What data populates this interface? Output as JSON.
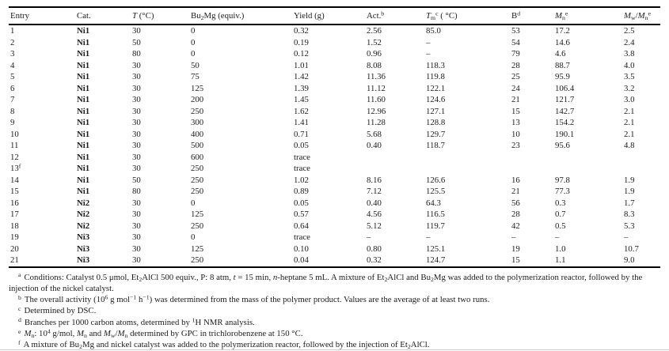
{
  "page": {
    "background_color": "#ffffff",
    "text_color": "#1c1c1c",
    "rule_color": "#000000"
  },
  "table": {
    "columns": [
      {
        "id": "entry",
        "label": "Entry"
      },
      {
        "id": "cat",
        "label": "Cat."
      },
      {
        "id": "temp",
        "label": "*T* (°C)"
      },
      {
        "id": "bu2mg",
        "label": "Bu~2~Mg (equiv.)"
      },
      {
        "id": "yield",
        "label": "Yield (g)"
      },
      {
        "id": "act",
        "label": "Act.^b^"
      },
      {
        "id": "tm",
        "label": "*T*~m~^c^ ( °C)"
      },
      {
        "id": "b",
        "label": "B^d^"
      },
      {
        "id": "mn",
        "label": "*M*~n~^e^"
      },
      {
        "id": "mwmn",
        "label": "*M*~w~/*M*~n~^e^"
      }
    ],
    "rows": [
      {
        "entry": "1",
        "cat": "Ni1",
        "temp": "30",
        "bu2mg": "0",
        "yield": "0.32",
        "act": "2.56",
        "tm": "85.0",
        "b": "53",
        "mn": "17.2",
        "mwmn": "2.5"
      },
      {
        "entry": "2",
        "cat": "Ni1",
        "temp": "50",
        "bu2mg": "0",
        "yield": "0.19",
        "act": "1.52",
        "tm": "–",
        "b": "54",
        "mn": "14.6",
        "mwmn": "2.4"
      },
      {
        "entry": "3",
        "cat": "Ni1",
        "temp": "80",
        "bu2mg": "0",
        "yield": "0.12",
        "act": "0.96",
        "tm": "–",
        "b": "79",
        "mn": "4.6",
        "mwmn": "3.8"
      },
      {
        "entry": "4",
        "cat": "Ni1",
        "temp": "30",
        "bu2mg": "50",
        "yield": "1.01",
        "act": "8.08",
        "tm": "118.3",
        "b": "28",
        "mn": "88.7",
        "mwmn": "4.0"
      },
      {
        "entry": "5",
        "cat": "Ni1",
        "temp": "30",
        "bu2mg": "75",
        "yield": "1.42",
        "act": "11.36",
        "tm": "119.8",
        "b": "25",
        "mn": "95.9",
        "mwmn": "3.5"
      },
      {
        "entry": "6",
        "cat": "Ni1",
        "temp": "30",
        "bu2mg": "125",
        "yield": "1.39",
        "act": "11.12",
        "tm": "122.1",
        "b": "24",
        "mn": "106.4",
        "mwmn": "3.2"
      },
      {
        "entry": "7",
        "cat": "Ni1",
        "temp": "30",
        "bu2mg": "200",
        "yield": "1.45",
        "act": "11.60",
        "tm": "124.6",
        "b": "21",
        "mn": "121.7",
        "mwmn": "3.0"
      },
      {
        "entry": "8",
        "cat": "Ni1",
        "temp": "30",
        "bu2mg": "250",
        "yield": "1.62",
        "act": "12.96",
        "tm": "127.1",
        "b": "15",
        "mn": "142.7",
        "mwmn": "2.1"
      },
      {
        "entry": "9",
        "cat": "Ni1",
        "temp": "30",
        "bu2mg": "300",
        "yield": "1.41",
        "act": "11.28",
        "tm": "128.8",
        "b": "13",
        "mn": "154.2",
        "mwmn": "2.1"
      },
      {
        "entry": "10",
        "cat": "Ni1",
        "temp": "30",
        "bu2mg": "400",
        "yield": "0.71",
        "act": "5.68",
        "tm": "129.7",
        "b": "10",
        "mn": "190.1",
        "mwmn": "2.1"
      },
      {
        "entry": "11",
        "cat": "Ni1",
        "temp": "30",
        "bu2mg": "500",
        "yield": "0.05",
        "act": "0.40",
        "tm": "118.7",
        "b": "23",
        "mn": "95.6",
        "mwmn": "4.8"
      },
      {
        "entry": "12",
        "cat": "Ni1",
        "temp": "30",
        "bu2mg": "600",
        "yield": "trace",
        "act": "",
        "tm": "",
        "b": "",
        "mn": "",
        "mwmn": ""
      },
      {
        "entry": "13^f^",
        "cat": "Ni1",
        "temp": "30",
        "bu2mg": "250",
        "yield": "trace",
        "act": "",
        "tm": "",
        "b": "",
        "mn": "",
        "mwmn": ""
      },
      {
        "entry": "14",
        "cat": "Ni1",
        "temp": "50",
        "bu2mg": "250",
        "yield": "1.02",
        "act": "8.16",
        "tm": "126.6",
        "b": "16",
        "mn": "97.8",
        "mwmn": "1.9"
      },
      {
        "entry": "15",
        "cat": "Ni1",
        "temp": "80",
        "bu2mg": "250",
        "yield": "0.89",
        "act": "7.12",
        "tm": "125.5",
        "b": "21",
        "mn": "77.3",
        "mwmn": "1.9"
      },
      {
        "entry": "16",
        "cat": "Ni2",
        "temp": "30",
        "bu2mg": "0",
        "yield": "0.05",
        "act": "0.40",
        "tm": "64.3",
        "b": "56",
        "mn": "0.3",
        "mwmn": "1.7"
      },
      {
        "entry": "17",
        "cat": "Ni2",
        "temp": "30",
        "bu2mg": "125",
        "yield": "0.57",
        "act": "4.56",
        "tm": "116.5",
        "b": "28",
        "mn": "0.7",
        "mwmn": "8.3"
      },
      {
        "entry": "18",
        "cat": "Ni2",
        "temp": "30",
        "bu2mg": "250",
        "yield": "0.64",
        "act": "5.12",
        "tm": "119.7",
        "b": "42",
        "mn": "0.5",
        "mwmn": "5.3"
      },
      {
        "entry": "19",
        "cat": "Ni3",
        "temp": "30",
        "bu2mg": "0",
        "yield": "trace",
        "act": "–",
        "tm": "–",
        "b": "–",
        "mn": "–",
        "mwmn": "–"
      },
      {
        "entry": "20",
        "cat": "Ni3",
        "temp": "30",
        "bu2mg": "125",
        "yield": "0.10",
        "act": "0.80",
        "tm": "125.1",
        "b": "19",
        "mn": "1.0",
        "mwmn": "10.7"
      },
      {
        "entry": "21",
        "cat": "Ni3",
        "temp": "30",
        "bu2mg": "250",
        "yield": "0.04",
        "act": "0.32",
        "tm": "124.7",
        "b": "15",
        "mn": "1.1",
        "mwmn": "9.0"
      }
    ]
  },
  "footnotes": [
    {
      "marker": "a",
      "text": "Conditions: Catalyst 0.5 μmol, Et~2~AlCl 500 equiv., P: 8 atm, *t* = 15 min, *n*-heptane 5 mL. A mixture of Et~2~AlCl and Bu~2~Mg was added to the polymerization reactor, followed by the injection of the nickel catalyst."
    },
    {
      "marker": "b",
      "text": "The overall activity (10^6^ g mol^−1^ h^−1^) was determined from the mass of the polymer product. Values are the average of at least two runs."
    },
    {
      "marker": "c",
      "text": "Determined by DSC."
    },
    {
      "marker": "d",
      "text": "Branches per 1000 carbon atoms, determined by ^1^H NMR analysis."
    },
    {
      "marker": "e",
      "text": "*M*~n~: 10^4^ g/mol, *M*~n~ and *M*~w~/*M*~n~ determined by GPC in trichlorobenzene at 150 °C."
    },
    {
      "marker": "f",
      "text": "A mixture of Bu~2~Mg and nickel catalyst was added to the polymerization reactor, followed by the injection of Et~2~AlCl."
    }
  ]
}
